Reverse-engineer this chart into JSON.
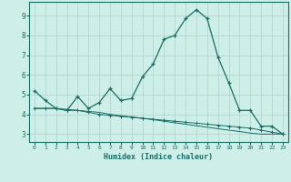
{
  "xlabel": "Humidex (Indice chaleur)",
  "ylabel": "",
  "bg_color": "#ceeee8",
  "grid_color": "#aed4cc",
  "line_color": "#1a6e64",
  "xlim": [
    -0.5,
    23.5
  ],
  "ylim": [
    2.6,
    9.7
  ],
  "yticks": [
    3,
    4,
    5,
    6,
    7,
    8,
    9
  ],
  "xticks": [
    0,
    1,
    2,
    3,
    4,
    5,
    6,
    7,
    8,
    9,
    10,
    11,
    12,
    13,
    14,
    15,
    16,
    17,
    18,
    19,
    20,
    21,
    22,
    23
  ],
  "line1_x": [
    0,
    1,
    2,
    3,
    4,
    5,
    6,
    7,
    8,
    9,
    10,
    11,
    12,
    13,
    14,
    15,
    16,
    17,
    18,
    19,
    20,
    21,
    22,
    23
  ],
  "line1_y": [
    5.2,
    4.7,
    4.3,
    4.2,
    4.9,
    4.3,
    4.6,
    5.3,
    4.7,
    4.8,
    5.9,
    6.55,
    7.8,
    8.0,
    8.85,
    9.3,
    8.85,
    6.9,
    5.6,
    4.2,
    4.2,
    3.4,
    3.4,
    3.0
  ],
  "line2_x": [
    0,
    1,
    2,
    3,
    4,
    5,
    6,
    7,
    8,
    9,
    10,
    11,
    12,
    13,
    14,
    15,
    16,
    17,
    18,
    19,
    20,
    21,
    22,
    23
  ],
  "line2_y": [
    4.3,
    4.3,
    4.3,
    4.2,
    4.2,
    4.1,
    4.0,
    3.95,
    3.9,
    3.85,
    3.8,
    3.75,
    3.7,
    3.65,
    3.6,
    3.55,
    3.5,
    3.45,
    3.4,
    3.35,
    3.3,
    3.2,
    3.1,
    3.0
  ],
  "line3_x": [
    0,
    1,
    2,
    3,
    4,
    5,
    6,
    7,
    8,
    9,
    10,
    11,
    12,
    13,
    14,
    15,
    16,
    17,
    18,
    19,
    20,
    21,
    22,
    23
  ],
  "line3_y": [
    4.3,
    4.3,
    4.3,
    4.25,
    4.2,
    4.15,
    4.1,
    4.0,
    3.93,
    3.87,
    3.8,
    3.73,
    3.65,
    3.57,
    3.5,
    3.42,
    3.35,
    3.27,
    3.2,
    3.13,
    3.05,
    3.0,
    3.0,
    3.0
  ]
}
